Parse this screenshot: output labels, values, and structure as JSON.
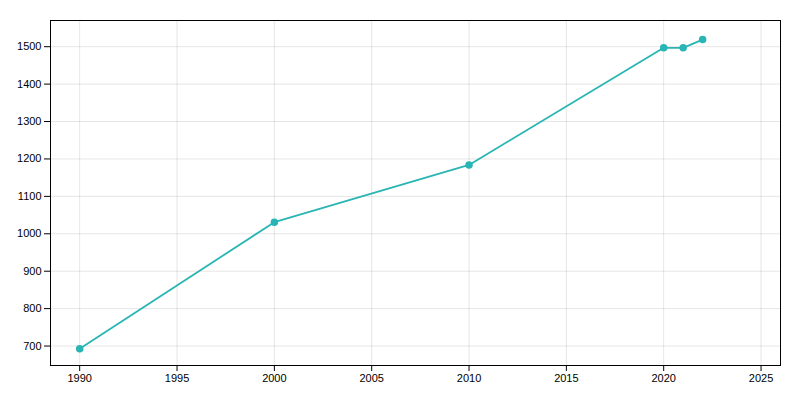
{
  "chart_data": {
    "type": "line",
    "x": [
      1990,
      2000,
      2010,
      2020,
      2021,
      2022
    ],
    "values": [
      693,
      1031,
      1184,
      1497,
      1497,
      1519
    ],
    "color": "#2ab5b5",
    "marker": "circle",
    "xlim": [
      1988.5,
      2026
    ],
    "ylim": [
      648,
      1570
    ],
    "xticks": [
      1990,
      1995,
      2000,
      2005,
      2010,
      2015,
      2020,
      2025
    ],
    "yticks": [
      700,
      800,
      900,
      1000,
      1100,
      1200,
      1300,
      1400,
      1500
    ],
    "grid": true
  }
}
